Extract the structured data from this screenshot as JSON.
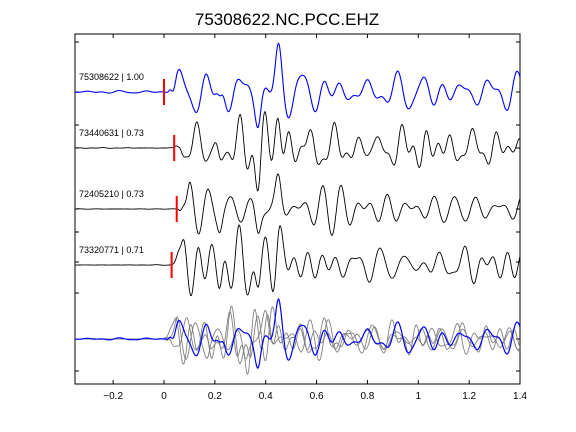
{
  "chart_data": {
    "type": "line",
    "title": "75308622.NC.PCC.EHZ",
    "xlabel": "",
    "ylabel": "",
    "xlim": [
      -0.35,
      1.4
    ],
    "x_ticks": [
      -0.2,
      0,
      0.2,
      0.4,
      0.6,
      0.8,
      1,
      1.2,
      1.4
    ],
    "x_tick_labels": [
      "−0.2",
      "0",
      "0.2",
      "0.4",
      "0.6",
      "0.8",
      "1",
      "1.2",
      "1.4"
    ],
    "y_ticks_visible": false,
    "grid": false,
    "traces": [
      {
        "event_id": "75308622",
        "correlation": "1.00",
        "label": "75308622 | 1.00",
        "color": "#0000ff",
        "pick_time": 0.0
      },
      {
        "event_id": "73440631",
        "correlation": "0.73",
        "label": "73440631 | 0.73",
        "color": "#000000",
        "pick_time": 0.04
      },
      {
        "event_id": "72405210",
        "correlation": "0.73",
        "label": "72405210 | 0.73",
        "color": "#000000",
        "pick_time": 0.05
      },
      {
        "event_id": "73320771",
        "correlation": "0.71",
        "label": "73320771 | 0.71",
        "color": "#000000",
        "pick_time": 0.03
      }
    ],
    "stack": {
      "name": "overlay",
      "reference_color": "#0000ff",
      "aligned_color": "#808080"
    },
    "pick_color": "#ff0000"
  }
}
